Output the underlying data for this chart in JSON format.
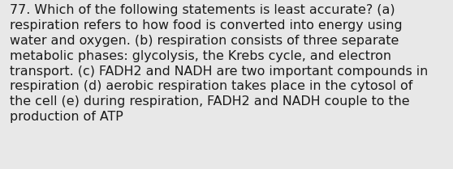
{
  "lines": [
    "77. Which of the following statements is least accurate? (a)",
    "respiration refers to how food is converted into energy using",
    "water and oxygen. (b) respiration consists of three separate",
    "metabolic phases: glycolysis, the Krebs cycle, and electron",
    "transport. (c) FADH2 and NADH are two important compounds in",
    "respiration (d) aerobic respiration takes place in the cytosol of",
    "the cell (e) during respiration, FADH2 and NADH couple to the",
    "production of ATP"
  ],
  "bg_color": "#e8e8e8",
  "text_color": "#1a1a1a",
  "font_size": 11.4,
  "fig_width": 5.58,
  "fig_height": 2.09,
  "dpi": 100
}
